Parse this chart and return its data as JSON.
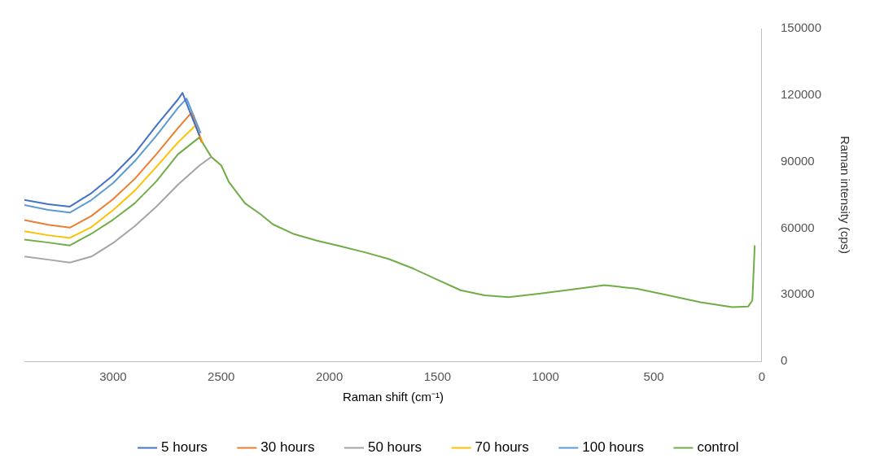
{
  "chart_data": {
    "type": "line",
    "xlabel": "Raman shift (cm⁻¹)",
    "ylabel": "Raman intensity (cps)",
    "xlim": [
      3410,
      0
    ],
    "xticks": [
      3000,
      2500,
      2000,
      1500,
      1000,
      500,
      0
    ],
    "ylim": [
      0,
      150000
    ],
    "yticks": [
      0,
      30000,
      60000,
      90000,
      120000,
      150000
    ],
    "grid": false,
    "legend": "bottom",
    "marker": "none",
    "line_style": "solid",
    "series": [
      {
        "name": "5 hours",
        "color": "#4472c4",
        "x": [
          3410,
          3300,
          3200,
          3100,
          3000,
          2900,
          2800,
          2700,
          2679,
          2640,
          2600
        ],
        "values": [
          72700,
          70800,
          69700,
          75800,
          83800,
          93700,
          106200,
          118000,
          121000,
          111200,
          101600
        ]
      },
      {
        "name": "30 hours",
        "color": "#ed7d31",
        "x": [
          3410,
          3300,
          3200,
          3100,
          3000,
          2900,
          2800,
          2700,
          2638,
          2590
        ],
        "values": [
          63600,
          61500,
          60200,
          65500,
          73100,
          82200,
          93300,
          105100,
          112000,
          98600
        ]
      },
      {
        "name": "50 hours",
        "color": "#a5a5a5",
        "x": [
          3410,
          3300,
          3200,
          3100,
          3000,
          2900,
          2800,
          2700,
          2600,
          2546
        ],
        "values": [
          47200,
          45800,
          44500,
          47200,
          53300,
          60900,
          69700,
          79600,
          88300,
          92100
        ]
      },
      {
        "name": "70 hours",
        "color": "#ffc000",
        "x": [
          3410,
          3300,
          3200,
          3100,
          3000,
          2900,
          2800,
          2700,
          2620,
          2585
        ],
        "values": [
          58600,
          56800,
          55600,
          60500,
          68100,
          76900,
          87600,
          98600,
          106200,
          98600
        ]
      },
      {
        "name": "100 hours",
        "color": "#5b9bd5",
        "x": [
          3410,
          3300,
          3200,
          3100,
          3000,
          2900,
          2800,
          2700,
          2660,
          2595
        ],
        "values": [
          70400,
          68200,
          67000,
          72700,
          80300,
          90200,
          101600,
          114200,
          118400,
          102800
        ]
      },
      {
        "name": "control",
        "color": "#70ad47",
        "x": [
          3410,
          3300,
          3200,
          3100,
          3000,
          2900,
          2800,
          2700,
          2601,
          2546,
          2500,
          2464,
          2390,
          2317,
          2261,
          2169,
          2058,
          1947,
          1836,
          1726,
          1615,
          1504,
          1393,
          1282,
          1171,
          1023,
          876,
          728,
          580,
          432,
          284,
          137,
          63,
          44,
          33
        ],
        "values": [
          54800,
          53500,
          52200,
          57500,
          63800,
          71200,
          81100,
          93300,
          100900,
          92100,
          88300,
          80700,
          71200,
          66200,
          61700,
          57500,
          54400,
          51800,
          49100,
          46100,
          41900,
          36900,
          32000,
          29700,
          28900,
          30500,
          32400,
          34300,
          32700,
          29700,
          26600,
          24400,
          24700,
          27400,
          52200
        ]
      }
    ]
  }
}
